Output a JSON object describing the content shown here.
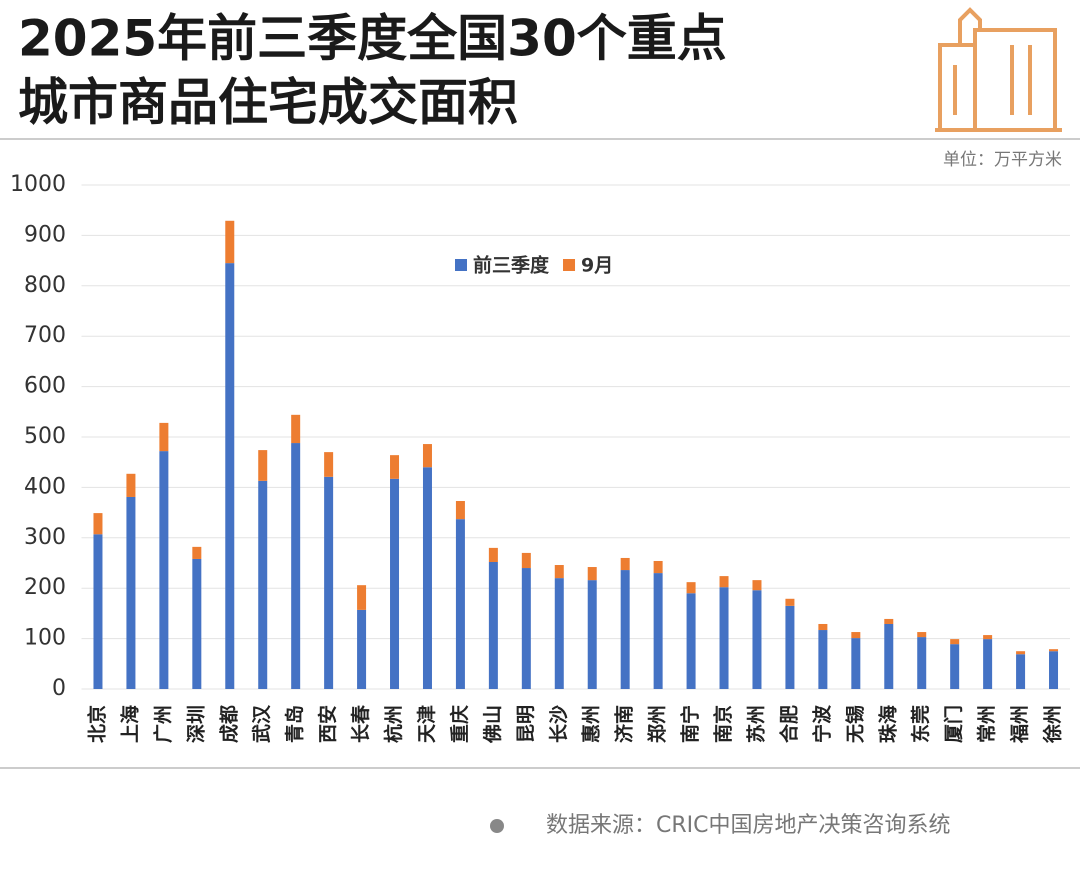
{
  "chart_data": {
    "type": "stacked_bar",
    "title": [
      "2025年前三季度全国30个重点",
      "城市商品住宅成交面积"
    ],
    "unit": "单位：万平方米",
    "source": "数据来源：CRIC中国房地产决策咨询系统",
    "categories": [
      "北京",
      "上海",
      "广州",
      "深圳",
      "成都",
      "武汉",
      "青岛",
      "西安",
      "长春",
      "杭州",
      "天津",
      "重庆",
      "佛山",
      "昆明",
      "长沙",
      "惠州",
      "济南",
      "郑州",
      "南宁",
      "南京",
      "苏州",
      "合肥",
      "宁波",
      "无锡",
      "珠海",
      "东莞",
      "厦门",
      "常州",
      "福州",
      "徐州"
    ],
    "series": [
      {
        "name": "前三季度",
        "color": "#4472c4",
        "values": [
          307,
          381,
          472,
          258,
          845,
          413,
          488,
          421,
          157,
          417,
          440,
          337,
          252,
          240,
          220,
          216,
          236,
          230,
          190,
          202,
          196,
          165,
          117,
          101,
          129,
          103,
          89,
          99,
          69,
          75
        ]
      },
      {
        "name": "9月",
        "color": "#ed7d31",
        "values": [
          42,
          46,
          56,
          24,
          84,
          61,
          56,
          49,
          49,
          47,
          46,
          36,
          28,
          30,
          26,
          26,
          24,
          24,
          22,
          22,
          20,
          14,
          12,
          12,
          10,
          10,
          10,
          8,
          6,
          4
        ]
      }
    ],
    "ylim": [
      0,
      1000
    ],
    "yticks": [
      0,
      100,
      200,
      300,
      400,
      500,
      600,
      700,
      800,
      900,
      1000
    ],
    "grid": true
  }
}
